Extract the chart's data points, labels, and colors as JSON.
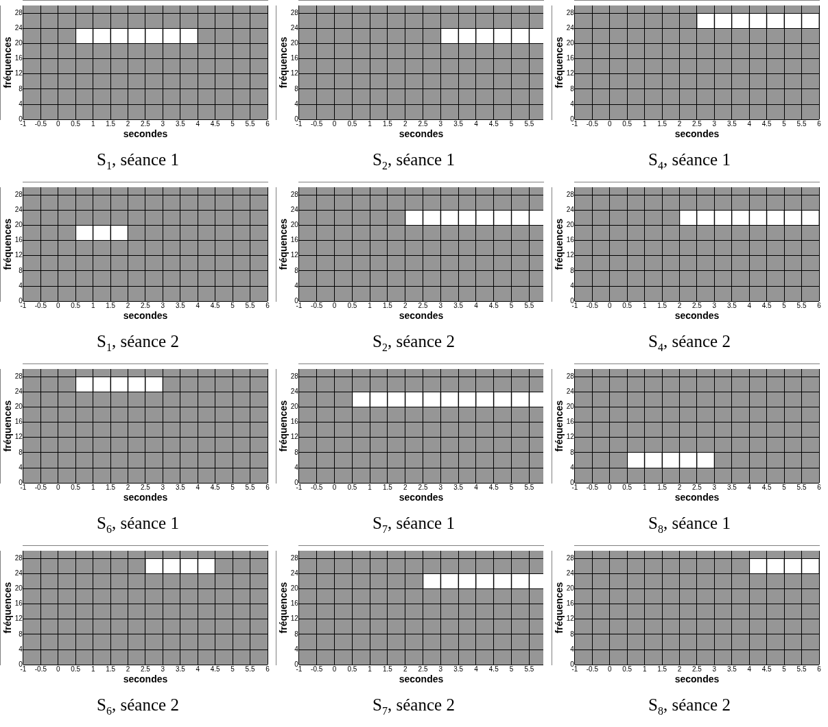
{
  "chart_data": [
    {
      "type": "bar",
      "title": "S$_{1}$, séance 1",
      "xlabel": "secondes",
      "ylabel": "fréquences",
      "x": [
        0.75,
        1.25,
        1.75,
        2.25,
        2.75,
        3.25,
        3.75
      ],
      "color": "#ffffff",
      "xlim": [
        -1,
        6
      ],
      "xticks": [
        -1,
        -0.5,
        0,
        0.5,
        1,
        1.5,
        2,
        2.5,
        3,
        3.5,
        4,
        4.5,
        5,
        5.5,
        6
      ],
      "ylim": [
        0,
        30
      ],
      "yticks": [
        0,
        4,
        8,
        12,
        16,
        20,
        24,
        28
      ],
      "grid": true,
      "values": [
        4,
        4,
        4,
        4,
        4,
        4,
        4
      ],
      "base": [
        20,
        20,
        20,
        20,
        20,
        20,
        20
      ]
    },
    {
      "type": "bar",
      "title": "S$_{2}$, séance 1",
      "xlabel": "secondes",
      "ylabel": "fréquences",
      "x": [
        3.25,
        3.75,
        4.25,
        4.75,
        5.25,
        5.75
      ],
      "color": "#ffffff",
      "xlim": [
        -1,
        5.9
      ],
      "xticks": [
        -1,
        -0.5,
        0,
        0.5,
        1,
        1.5,
        2,
        2.5,
        3,
        3.5,
        4,
        4.5,
        5,
        5.5
      ],
      "ylim": [
        0,
        30
      ],
      "yticks": [
        0,
        4,
        8,
        12,
        16,
        20,
        24,
        28
      ],
      "grid": true,
      "values": [
        4,
        4,
        4,
        4,
        4,
        4
      ],
      "base": [
        20,
        20,
        20,
        20,
        20,
        20
      ]
    },
    {
      "type": "bar",
      "title": "S$_{4}$, séance 1",
      "xlabel": "secondes",
      "ylabel": "fréquences",
      "x": [
        2.75,
        3.25,
        3.75,
        4.25,
        4.75,
        5.25,
        5.75
      ],
      "color": "#ffffff",
      "xlim": [
        -1,
        6
      ],
      "xticks": [
        -1,
        -0.5,
        0,
        0.5,
        1,
        1.5,
        2,
        2.5,
        3,
        3.5,
        4,
        4.5,
        5,
        5.5,
        6
      ],
      "ylim": [
        0,
        30
      ],
      "yticks": [
        0,
        4,
        8,
        12,
        16,
        20,
        24,
        28
      ],
      "grid": true,
      "values": [
        4,
        4,
        4,
        4,
        4,
        4,
        4
      ],
      "base": [
        24,
        24,
        24,
        24,
        24,
        24,
        24
      ]
    },
    {
      "type": "bar",
      "title": "S$_{1}$, séance 2",
      "xlabel": "secondes",
      "ylabel": "fréquences",
      "x": [
        0.75,
        1.25,
        1.75
      ],
      "color": "#ffffff",
      "xlim": [
        -1,
        6
      ],
      "xticks": [
        -1,
        -0.5,
        0,
        0.5,
        1,
        1.5,
        2,
        2.5,
        3,
        3.5,
        4,
        4.5,
        5,
        5.5,
        6
      ],
      "ylim": [
        0,
        30
      ],
      "yticks": [
        0,
        4,
        8,
        12,
        16,
        20,
        24,
        28
      ],
      "grid": true,
      "values": [
        4,
        4,
        4
      ],
      "base": [
        16,
        16,
        16
      ]
    },
    {
      "type": "bar",
      "title": "S$_{2}$, séance 2",
      "xlabel": "secondes",
      "ylabel": "fréquences",
      "x": [
        2.25,
        2.75,
        3.25,
        3.75,
        4.25,
        4.75,
        5.25,
        5.75
      ],
      "color": "#ffffff",
      "xlim": [
        -1,
        5.9
      ],
      "xticks": [
        -1,
        -0.5,
        0,
        0.5,
        1,
        1.5,
        2,
        2.5,
        3,
        3.5,
        4,
        4.5,
        5,
        5.5
      ],
      "ylim": [
        0,
        30
      ],
      "yticks": [
        0,
        4,
        8,
        12,
        16,
        20,
        24,
        28
      ],
      "grid": true,
      "values": [
        4,
        4,
        4,
        4,
        4,
        4,
        4,
        4
      ],
      "base": [
        20,
        20,
        20,
        20,
        20,
        20,
        20,
        20
      ]
    },
    {
      "type": "bar",
      "title": "S$_{4}$, séance 2",
      "xlabel": "secondes",
      "ylabel": "fréquences",
      "x": [
        2.25,
        2.75,
        3.25,
        3.75,
        4.25,
        4.75,
        5.25,
        5.75
      ],
      "color": "#ffffff",
      "xlim": [
        -1,
        6
      ],
      "xticks": [
        -1,
        -0.5,
        0,
        0.5,
        1,
        1.5,
        2,
        2.5,
        3,
        3.5,
        4,
        4.5,
        5,
        5.5,
        6
      ],
      "ylim": [
        0,
        30
      ],
      "yticks": [
        0,
        4,
        8,
        12,
        16,
        20,
        24,
        28
      ],
      "grid": true,
      "values": [
        4,
        4,
        4,
        4,
        4,
        4,
        4,
        4
      ],
      "base": [
        20,
        20,
        20,
        20,
        20,
        20,
        20,
        20
      ]
    },
    {
      "type": "bar",
      "title": "S$_{6}$, séance 1",
      "xlabel": "secondes",
      "ylabel": "fréquences",
      "x": [
        0.75,
        1.25,
        1.75,
        2.25,
        2.75
      ],
      "color": "#ffffff",
      "xlim": [
        -1,
        6
      ],
      "xticks": [
        -1,
        -0.5,
        0,
        0.5,
        1,
        1.5,
        2,
        2.5,
        3,
        3.5,
        4,
        4.5,
        5,
        5.5,
        6
      ],
      "ylim": [
        0,
        30
      ],
      "yticks": [
        0,
        4,
        8,
        12,
        16,
        20,
        24,
        28
      ],
      "grid": true,
      "values": [
        4,
        4,
        4,
        4,
        4
      ],
      "base": [
        24,
        24,
        24,
        24,
        24
      ]
    },
    {
      "type": "bar",
      "title": "S$_{7}$, séance 1",
      "xlabel": "secondes",
      "ylabel": "fréquences",
      "x": [
        0.75,
        1.25,
        1.75,
        2.25,
        2.75,
        3.25,
        3.75,
        4.25,
        4.75,
        5.25,
        5.75
      ],
      "color": "#ffffff",
      "xlim": [
        -1,
        5.9
      ],
      "xticks": [
        -1,
        -0.5,
        0,
        0.5,
        1,
        1.5,
        2,
        2.5,
        3,
        3.5,
        4,
        4.5,
        5,
        5.5
      ],
      "ylim": [
        0,
        30
      ],
      "yticks": [
        0,
        4,
        8,
        12,
        16,
        20,
        24,
        28
      ],
      "grid": true,
      "values": [
        4,
        4,
        4,
        4,
        4,
        4,
        4,
        4,
        4,
        4,
        4
      ],
      "base": [
        20,
        20,
        20,
        20,
        20,
        20,
        20,
        20,
        20,
        20,
        20
      ]
    },
    {
      "type": "bar",
      "title": "S$_{8}$, séance 1",
      "xlabel": "secondes",
      "ylabel": "fréquences",
      "x": [
        0.75,
        1.25,
        1.75,
        2.25,
        2.75
      ],
      "color": "#ffffff",
      "xlim": [
        -1,
        6
      ],
      "xticks": [
        -1,
        -0.5,
        0,
        0.5,
        1,
        1.5,
        2,
        2.5,
        3,
        3.5,
        4,
        4.5,
        5,
        5.5,
        6
      ],
      "ylim": [
        0,
        30
      ],
      "yticks": [
        0,
        4,
        8,
        12,
        16,
        20,
        24,
        28
      ],
      "grid": true,
      "values": [
        4,
        4,
        4,
        4,
        4
      ],
      "base": [
        4,
        4,
        4,
        4,
        4
      ]
    },
    {
      "type": "bar",
      "title": "S$_{6}$, séance 2",
      "xlabel": "secondes",
      "ylabel": "fréquences",
      "x": [
        2.75,
        3.25,
        3.75,
        4.25
      ],
      "color": "#ffffff",
      "xlim": [
        -1,
        6
      ],
      "xticks": [
        -1,
        -0.5,
        0,
        0.5,
        1,
        1.5,
        2,
        2.5,
        3,
        3.5,
        4,
        4.5,
        5,
        5.5,
        6
      ],
      "ylim": [
        0,
        30
      ],
      "yticks": [
        0,
        4,
        8,
        12,
        16,
        20,
        24,
        28
      ],
      "grid": true,
      "values": [
        4,
        4,
        4,
        4
      ],
      "base": [
        24,
        24,
        24,
        24
      ]
    },
    {
      "type": "bar",
      "title": "S$_{7}$, séance 2",
      "xlabel": "secondes",
      "ylabel": "fréquences",
      "x": [
        2.75,
        3.25,
        3.75,
        4.25,
        4.75,
        5.25,
        5.75
      ],
      "color": "#ffffff",
      "xlim": [
        -1,
        5.9
      ],
      "xticks": [
        -1,
        -0.5,
        0,
        0.5,
        1,
        1.5,
        2,
        2.5,
        3,
        3.5,
        4,
        4.5,
        5,
        5.5
      ],
      "ylim": [
        0,
        30
      ],
      "yticks": [
        0,
        4,
        8,
        12,
        16,
        20,
        24,
        28
      ],
      "grid": true,
      "values": [
        4,
        4,
        4,
        4,
        4,
        4,
        4
      ],
      "base": [
        20,
        20,
        20,
        20,
        20,
        20,
        20
      ]
    },
    {
      "type": "bar",
      "title": "S$_{8}$, séance 2",
      "xlabel": "secondes",
      "ylabel": "fréquences",
      "x": [
        4.25,
        4.75,
        5.25,
        5.75
      ],
      "color": "#ffffff",
      "xlim": [
        -1,
        6
      ],
      "xticks": [
        -1,
        -0.5,
        0,
        0.5,
        1,
        1.5,
        2,
        2.5,
        3,
        3.5,
        4,
        4.5,
        5,
        5.5,
        6
      ],
      "ylim": [
        0,
        30
      ],
      "yticks": [
        0,
        4,
        8,
        12,
        16,
        20,
        24,
        28
      ],
      "grid": true,
      "values": [
        4,
        4,
        4,
        4
      ],
      "base": [
        24,
        24,
        24,
        24
      ]
    }
  ]
}
